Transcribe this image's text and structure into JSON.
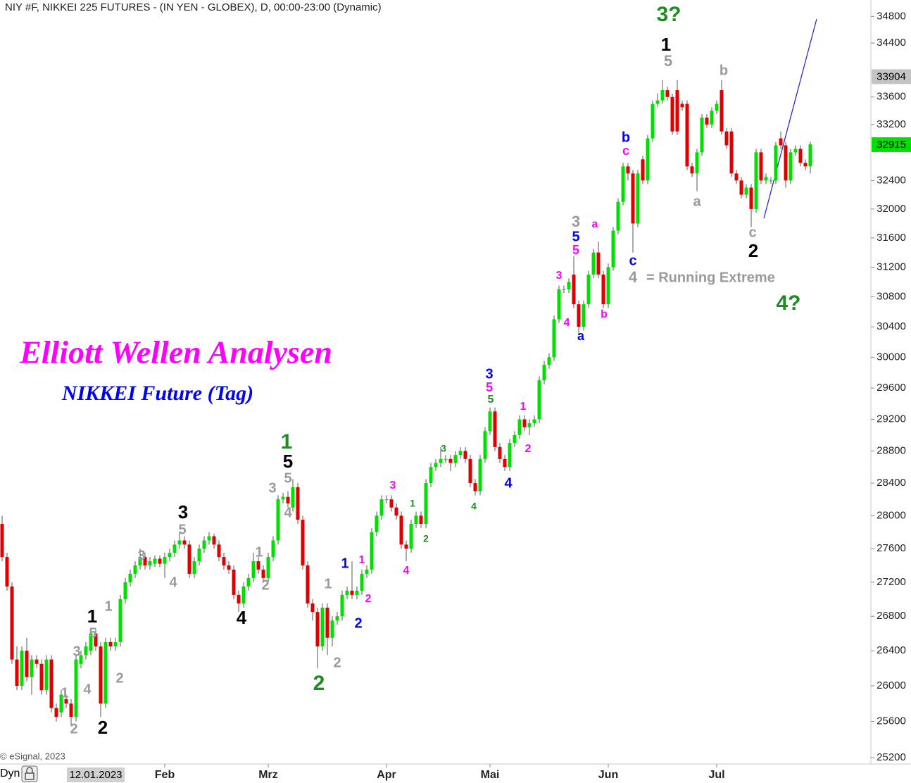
{
  "chart_data": {
    "type": "candlestick",
    "title": "NIY #F, NIKKEI 225 FUTURES - (IN YEN - GLOBEX), D, 00:00-23:00 (Dynamic)",
    "overlay_title": "Elliott Wellen Analysen",
    "overlay_subtitle": "NIKKEI Future (Tag)",
    "copyright": "© eSignal, 2023",
    "mode_label": "Dyn",
    "cursor_date": "12.01.2023",
    "log_scale": true,
    "up_color": "#00e000",
    "down_color": "#e00000",
    "ylim": [
      25130,
      35050
    ],
    "yticks": [
      25200,
      25600,
      26000,
      26400,
      26800,
      27200,
      27600,
      28000,
      28400,
      28800,
      29200,
      29600,
      30000,
      30400,
      30800,
      31200,
      31600,
      32000,
      32400,
      33200,
      33600,
      34400,
      34800
    ],
    "xticks": [
      {
        "value": 33,
        "label": "Feb"
      },
      {
        "value": 54,
        "label": "Mrz"
      },
      {
        "value": 78,
        "label": "Apr"
      },
      {
        "value": 99,
        "label": "Mai"
      },
      {
        "value": 123,
        "label": "Jun"
      },
      {
        "value": 145,
        "label": "Jul"
      }
    ],
    "high_marker": 33904,
    "last_price": 32915,
    "ohlc": [
      [
        27900,
        28000,
        27450,
        27500
      ],
      [
        27500,
        27550,
        27100,
        27150
      ],
      [
        27150,
        27200,
        26250,
        26300
      ],
      [
        26300,
        26450,
        25950,
        26000
      ],
      [
        26000,
        26450,
        25950,
        26400
      ],
      [
        26400,
        26550,
        26050,
        26100
      ],
      [
        26100,
        26350,
        25900,
        26300
      ],
      [
        26300,
        26350,
        26200,
        26250
      ],
      [
        26250,
        26300,
        25900,
        25950
      ],
      [
        25950,
        26350,
        25900,
        26300
      ],
      [
        26300,
        26350,
        25700,
        25750
      ],
      [
        25750,
        25800,
        25600,
        25650
      ],
      [
        25700,
        25950,
        25650,
        25900
      ],
      [
        25850,
        25900,
        25750,
        25800
      ],
      [
        25800,
        25850,
        25550,
        25650
      ],
      [
        25650,
        26350,
        25600,
        26300
      ],
      [
        26250,
        26400,
        26200,
        26350
      ],
      [
        26350,
        26500,
        26300,
        26450
      ],
      [
        26400,
        26650,
        26350,
        26600
      ],
      [
        26600,
        26650,
        26400,
        26450
      ],
      [
        26450,
        26500,
        25650,
        25800
      ],
      [
        25800,
        26550,
        25750,
        26500
      ],
      [
        26500,
        26550,
        26400,
        26450
      ],
      [
        26450,
        26550,
        26400,
        26500
      ],
      [
        26500,
        27050,
        26450,
        27000
      ],
      [
        27000,
        27250,
        26950,
        27200
      ],
      [
        27200,
        27350,
        27150,
        27300
      ],
      [
        27300,
        27450,
        27250,
        27400
      ],
      [
        27400,
        27600,
        27350,
        27500
      ],
      [
        27500,
        27550,
        27350,
        27400
      ],
      [
        27400,
        27500,
        27350,
        27450
      ],
      [
        27420,
        27520,
        27380,
        27480
      ],
      [
        27480,
        27520,
        27380,
        27420
      ],
      [
        27420,
        27550,
        27250,
        27500
      ],
      [
        27500,
        27600,
        27450,
        27550
      ],
      [
        27550,
        27700,
        27500,
        27650
      ],
      [
        27650,
        27800,
        27600,
        27700
      ],
      [
        27700,
        27750,
        27600,
        27650
      ],
      [
        27650,
        27700,
        27250,
        27300
      ],
      [
        27300,
        27500,
        27250,
        27450
      ],
      [
        27450,
        27650,
        27400,
        27600
      ],
      [
        27600,
        27750,
        27550,
        27700
      ],
      [
        27700,
        27800,
        27650,
        27750
      ],
      [
        27750,
        27780,
        27600,
        27650
      ],
      [
        27650,
        27700,
        27450,
        27500
      ],
      [
        27500,
        27550,
        27350,
        27400
      ],
      [
        27400,
        27450,
        27300,
        27350
      ],
      [
        27350,
        27400,
        27000,
        27050
      ],
      [
        27050,
        27100,
        26850,
        26950
      ],
      [
        26950,
        27200,
        26900,
        27150
      ],
      [
        27150,
        27300,
        27100,
        27250
      ],
      [
        27250,
        27550,
        27200,
        27450
      ],
      [
        27450,
        27500,
        27300,
        27350
      ],
      [
        27350,
        27400,
        27200,
        27250
      ],
      [
        27250,
        27550,
        27200,
        27500
      ],
      [
        27500,
        27750,
        27450,
        27700
      ],
      [
        27700,
        28250,
        27650,
        28200
      ],
      [
        28200,
        28280,
        28150,
        28230
      ],
      [
        28230,
        28300,
        28100,
        28150
      ],
      [
        28100,
        28450,
        28050,
        28350
      ],
      [
        28350,
        28400,
        27900,
        27950
      ],
      [
        27950,
        28000,
        27350,
        27400
      ],
      [
        27400,
        27450,
        26900,
        26950
      ],
      [
        26950,
        27000,
        26750,
        26850
      ],
      [
        26850,
        26900,
        26200,
        26450
      ],
      [
        26450,
        26950,
        26400,
        26900
      ],
      [
        26900,
        26950,
        26350,
        26550
      ],
      [
        26550,
        26800,
        26450,
        26750
      ],
      [
        26750,
        26850,
        26700,
        26800
      ],
      [
        26800,
        27100,
        26750,
        27050
      ],
      [
        27050,
        27150,
        27000,
        27100
      ],
      [
        27100,
        27450,
        27000,
        27050
      ],
      [
        27050,
        27150,
        27000,
        27100
      ],
      [
        27100,
        27350,
        27050,
        27300
      ],
      [
        27300,
        27400,
        27250,
        27350
      ],
      [
        27350,
        27850,
        27300,
        27800
      ],
      [
        27800,
        28050,
        27750,
        28000
      ],
      [
        28000,
        28250,
        27950,
        28200
      ],
      [
        28200,
        28250,
        28150,
        28200
      ],
      [
        28200,
        28250,
        28050,
        28100
      ],
      [
        28100,
        28150,
        27950,
        28000
      ],
      [
        28000,
        28050,
        27600,
        27650
      ],
      [
        27650,
        27700,
        27450,
        27600
      ],
      [
        27600,
        27950,
        27550,
        27900
      ],
      [
        27900,
        28050,
        27850,
        28000
      ],
      [
        28000,
        28050,
        27850,
        27900
      ],
      [
        27900,
        28450,
        27850,
        28400
      ],
      [
        28400,
        28650,
        28350,
        28600
      ],
      [
        28600,
        28700,
        28550,
        28650
      ],
      [
        28650,
        28850,
        28600,
        28700
      ],
      [
        28700,
        28750,
        28650,
        28700
      ],
      [
        28700,
        28750,
        28550,
        28650
      ],
      [
        28650,
        28800,
        28600,
        28750
      ],
      [
        28750,
        28850,
        28700,
        28800
      ],
      [
        28800,
        28850,
        28650,
        28700
      ],
      [
        28700,
        28750,
        28350,
        28400
      ],
      [
        28400,
        28450,
        28250,
        28300
      ],
      [
        28300,
        28750,
        28250,
        28700
      ],
      [
        28700,
        29100,
        28650,
        29050
      ],
      [
        29050,
        29350,
        29000,
        29300
      ],
      [
        29300,
        29350,
        28800,
        28850
      ],
      [
        28850,
        28900,
        28650,
        28700
      ],
      [
        28700,
        28750,
        28550,
        28600
      ],
      [
        28600,
        28950,
        28550,
        28900
      ],
      [
        28900,
        29050,
        28850,
        29000
      ],
      [
        29000,
        29250,
        28950,
        29200
      ],
      [
        29200,
        29250,
        29050,
        29100
      ],
      [
        29100,
        29200,
        29000,
        29150
      ],
      [
        29150,
        29250,
        29100,
        29200
      ],
      [
        29200,
        29750,
        29150,
        29700
      ],
      [
        29700,
        29950,
        29650,
        29900
      ],
      [
        29900,
        30050,
        29850,
        30000
      ],
      [
        30000,
        30550,
        29950,
        30500
      ],
      [
        30500,
        30950,
        30450,
        30900
      ],
      [
        30900,
        30950,
        30850,
        30900
      ],
      [
        30900,
        31050,
        30850,
        31000
      ],
      [
        31100,
        31350,
        30650,
        30700
      ],
      [
        30700,
        30750,
        30300,
        30400
      ],
      [
        30400,
        30750,
        30350,
        30700
      ],
      [
        30700,
        31150,
        30650,
        31100
      ],
      [
        31100,
        31450,
        31050,
        31400
      ],
      [
        31400,
        31550,
        31050,
        31100
      ],
      [
        31100,
        31150,
        30650,
        30700
      ],
      [
        30700,
        31250,
        30650,
        31200
      ],
      [
        31200,
        31750,
        31150,
        31700
      ],
      [
        31700,
        32150,
        31650,
        32100
      ],
      [
        32100,
        32650,
        32050,
        32600
      ],
      [
        32600,
        32650,
        32400,
        32500
      ],
      [
        32500,
        32550,
        31400,
        31800
      ],
      [
        31800,
        32550,
        31750,
        32500
      ],
      [
        32700,
        32750,
        32350,
        32400
      ],
      [
        32400,
        33050,
        32350,
        33000
      ],
      [
        33000,
        33550,
        32950,
        33500
      ],
      [
        33500,
        33650,
        33450,
        33550
      ],
      [
        33550,
        33850,
        33500,
        33700
      ],
      [
        33700,
        33750,
        33550,
        33600
      ],
      [
        33600,
        33650,
        33050,
        33100
      ],
      [
        33700,
        33850,
        33050,
        33100
      ],
      [
        33500,
        33550,
        33400,
        33450
      ],
      [
        33500,
        33550,
        32550,
        32600
      ],
      [
        32600,
        32650,
        32450,
        32500
      ],
      [
        32500,
        32850,
        32250,
        32800
      ],
      [
        32800,
        33350,
        32750,
        33300
      ],
      [
        33300,
        33350,
        33150,
        33200
      ],
      [
        33200,
        33450,
        33150,
        33400
      ],
      [
        33400,
        33550,
        33350,
        33500
      ],
      [
        33700,
        33850,
        33050,
        33100
      ],
      [
        33100,
        33150,
        32850,
        32900
      ],
      [
        33100,
        33150,
        32450,
        32500
      ],
      [
        32500,
        32550,
        32350,
        32400
      ],
      [
        32400,
        32450,
        32150,
        32200
      ],
      [
        32200,
        32350,
        32150,
        32300
      ],
      [
        32300,
        32350,
        31750,
        32000
      ],
      [
        32000,
        32850,
        31950,
        32800
      ],
      [
        32800,
        32850,
        32350,
        32400
      ],
      [
        32400,
        32500,
        32350,
        32450
      ],
      [
        32400,
        32450,
        32350,
        32400
      ],
      [
        32400,
        32950,
        32350,
        32900
      ],
      [
        33000,
        33100,
        32850,
        32900
      ],
      [
        32900,
        32950,
        32300,
        32400
      ],
      [
        32400,
        32850,
        32350,
        32800
      ],
      [
        32800,
        32900,
        32750,
        32850
      ],
      [
        32850,
        32900,
        32600,
        32650
      ],
      [
        32650,
        32700,
        32550,
        32600
      ],
      [
        32600,
        32950,
        32500,
        32915
      ]
    ],
    "annotations": [
      {
        "text": "3?",
        "color": "#1e8c1e"
      },
      {
        "text": "1",
        "color": "#000000"
      },
      {
        "text": "5",
        "color": "#9a9a9a"
      },
      {
        "text": "b",
        "color": "#9a9a9a"
      },
      {
        "text": "b",
        "color": "#0000ff"
      },
      {
        "text": "c",
        "color": "#ff00ff"
      },
      {
        "text": "a",
        "color": "#9a9a9a"
      },
      {
        "text": "c",
        "color": "#9a9a9a"
      },
      {
        "text": "2",
        "color": "#000000"
      },
      {
        "text": "4",
        "color": "#9a9a9a"
      },
      {
        "text": "= Running Extreme",
        "color": "#9a9a9a"
      },
      {
        "text": "4?",
        "color": "#1e8c1e"
      },
      {
        "text": "c",
        "color": "#0000ff"
      },
      {
        "text": "3",
        "color": "#9a9a9a"
      },
      {
        "text": "5",
        "color": "#0000ff"
      },
      {
        "text": "5",
        "color": "#ff00ff"
      },
      {
        "text": "a",
        "color": "#ff00ff"
      },
      {
        "text": "3",
        "color": "#ff00ff"
      },
      {
        "text": "4",
        "color": "#ff00ff"
      },
      {
        "text": "a",
        "color": "#0000ff"
      },
      {
        "text": "b",
        "color": "#ff00ff"
      },
      {
        "text": "3",
        "color": "#0000ff"
      },
      {
        "text": "5",
        "color": "#ff00ff"
      },
      {
        "text": "5",
        "color": "#1e8c1e"
      },
      {
        "text": "1",
        "color": "#ff00ff"
      },
      {
        "text": "2",
        "color": "#ff00ff"
      },
      {
        "text": "4",
        "color": "#0000ff"
      },
      {
        "text": "3",
        "color": "#1e8c1e"
      },
      {
        "text": "4",
        "color": "#1e8c1e"
      },
      {
        "text": "3",
        "color": "#ff00ff"
      },
      {
        "text": "1",
        "color": "#1e8c1e"
      },
      {
        "text": "2",
        "color": "#1e8c1e"
      },
      {
        "text": "4",
        "color": "#ff00ff"
      },
      {
        "text": "1",
        "color": "#ff00ff"
      },
      {
        "text": "2",
        "color": "#ff00ff"
      },
      {
        "text": "1",
        "color": "#0000ff"
      },
      {
        "text": "2",
        "color": "#0000ff"
      },
      {
        "text": "1",
        "color": "#9a9a9a"
      },
      {
        "text": "2",
        "color": "#9a9a9a"
      },
      {
        "text": "2",
        "color": "#1e8c1e"
      },
      {
        "text": "1",
        "color": "#1e8c1e"
      },
      {
        "text": "5",
        "color": "#000000"
      },
      {
        "text": "3",
        "color": "#9a9a9a"
      },
      {
        "text": "5",
        "color": "#9a9a9a"
      },
      {
        "text": "4",
        "color": "#9a9a9a"
      },
      {
        "text": "1",
        "color": "#9a9a9a"
      },
      {
        "text": "2",
        "color": "#9a9a9a"
      },
      {
        "text": "4",
        "color": "#000000"
      },
      {
        "text": "3",
        "color": "#000000"
      },
      {
        "text": "5",
        "color": "#9a9a9a"
      },
      {
        "text": "3",
        "color": "#9a9a9a"
      },
      {
        "text": "4",
        "color": "#9a9a9a"
      },
      {
        "text": "1",
        "color": "#000000"
      },
      {
        "text": "5",
        "color": "#9a9a9a"
      },
      {
        "text": "1",
        "color": "#9a9a9a"
      },
      {
        "text": "3",
        "color": "#9a9a9a"
      },
      {
        "text": "2",
        "color": "#9a9a9a"
      },
      {
        "text": "4",
        "color": "#9a9a9a"
      },
      {
        "text": "1",
        "color": "#9a9a9a"
      },
      {
        "text": "2",
        "color": "#9a9a9a"
      },
      {
        "text": "2",
        "color": "#000000"
      }
    ]
  }
}
